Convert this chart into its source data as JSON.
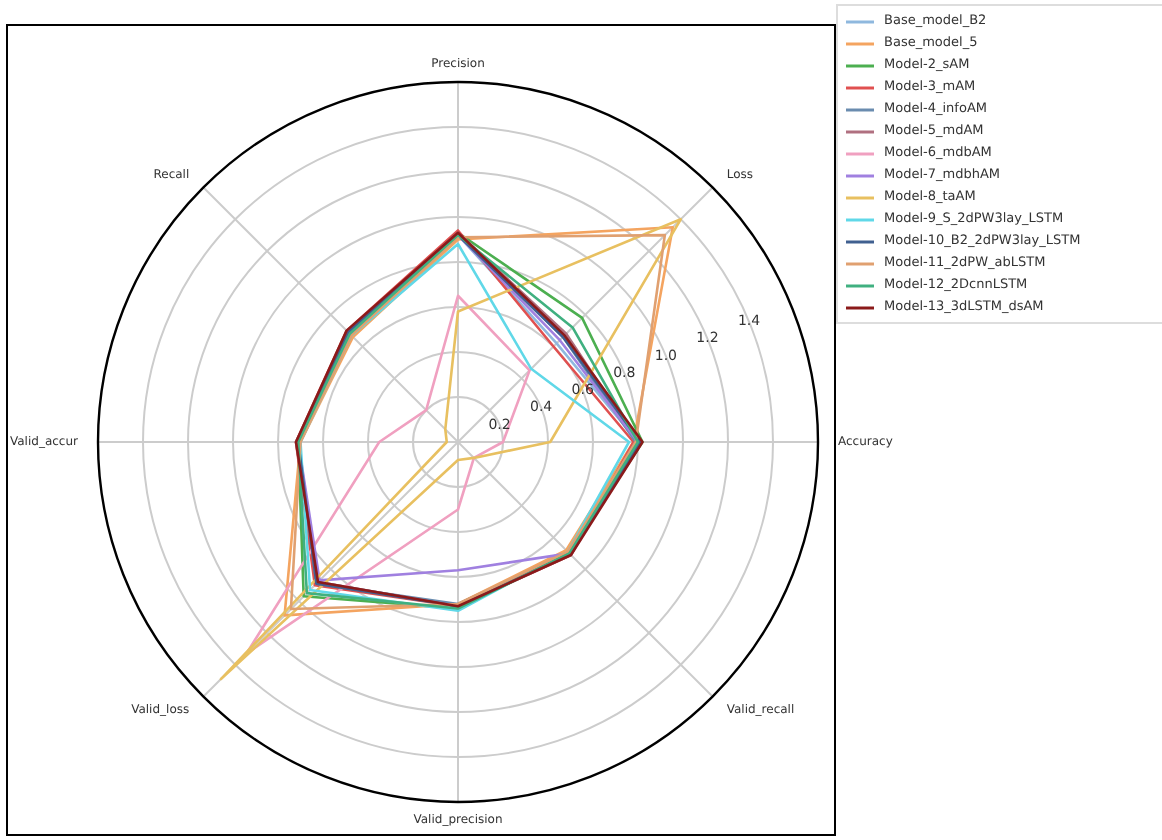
{
  "chart_data": {
    "type": "radar",
    "categories": [
      "Precision",
      "Loss",
      "Accuracy",
      "Valid_recall",
      "Valid_precision",
      "Valid_loss",
      "Valid_accur",
      "Recall"
    ],
    "ylim": [
      0,
      1.6
    ],
    "yticks": [
      0.2,
      0.4,
      0.6,
      0.8,
      {
        "value": 1.0,
        "label": "1.0"
      },
      1.2,
      1.4
    ],
    "grid": true,
    "legend": "top right",
    "marker": "none",
    "line_style": "solid",
    "series": [
      {
        "name": "Base_model_B2",
        "color": "#8fb8de",
        "values": [
          0.92,
          0.62,
          0.8,
          0.7,
          0.73,
          0.88,
          0.71,
          0.68
        ]
      },
      {
        "name": "Base_model_5",
        "color": "#f4a460",
        "values": [
          0.9,
          1.35,
          0.78,
          0.68,
          0.72,
          1.09,
          0.7,
          0.66
        ]
      },
      {
        "name": "Model-2_sAM",
        "color": "#4caf50",
        "values": [
          0.93,
          0.78,
          0.82,
          0.7,
          0.74,
          0.97,
          0.71,
          0.69
        ]
      },
      {
        "name": "Model-3_mAM",
        "color": "#e05050",
        "values": [
          0.94,
          0.6,
          0.78,
          0.71,
          0.73,
          0.9,
          0.72,
          0.7
        ]
      },
      {
        "name": "Model-4_infoAM",
        "color": "#6a8caf",
        "values": [
          0.92,
          0.66,
          0.79,
          0.7,
          0.72,
          0.89,
          0.71,
          0.68
        ]
      },
      {
        "name": "Model-5_mdAM",
        "color": "#b07080",
        "values": [
          0.93,
          0.68,
          0.8,
          0.71,
          0.73,
          0.88,
          0.72,
          0.69
        ]
      },
      {
        "name": "Model-6_mdbAM",
        "color": "#f0a0c0",
        "values": [
          0.65,
          0.45,
          0.2,
          0.1,
          0.3,
          1.33,
          0.35,
          0.2
        ]
      },
      {
        "name": "Model-7_mdbhAM",
        "color": "#a080e0",
        "values": [
          0.92,
          0.64,
          0.8,
          0.7,
          0.57,
          0.87,
          0.71,
          0.68
        ]
      },
      {
        "name": "Model-8_taAM",
        "color": "#e8c060",
        "values": [
          0.58,
          1.4,
          0.41,
          0.1,
          0.08,
          1.49,
          0.05,
          0.08
        ]
      },
      {
        "name": "Model-9_S_2dPW3lay_LSTM",
        "color": "#60d8e8",
        "values": [
          0.88,
          0.46,
          0.76,
          0.69,
          0.75,
          0.93,
          0.7,
          0.67
        ]
      },
      {
        "name": "Model-10_B2_2dPW3lay_LSTM",
        "color": "#406090",
        "values": [
          0.92,
          0.66,
          0.81,
          0.7,
          0.73,
          0.89,
          0.71,
          0.69
        ]
      },
      {
        "name": "Model-11_2dPW_abLSTM",
        "color": "#e0a070",
        "values": [
          0.91,
          1.3,
          0.79,
          0.69,
          0.72,
          1.05,
          0.7,
          0.67
        ]
      },
      {
        "name": "Model-12_2DcnnLSTM",
        "color": "#40b080",
        "values": [
          0.92,
          0.72,
          0.8,
          0.7,
          0.74,
          0.95,
          0.71,
          0.68
        ]
      },
      {
        "name": "Model-13_3dLSTM_dsAM",
        "color": "#8b1a1a",
        "values": [
          0.93,
          0.67,
          0.82,
          0.71,
          0.73,
          0.88,
          0.72,
          0.7
        ]
      }
    ]
  }
}
